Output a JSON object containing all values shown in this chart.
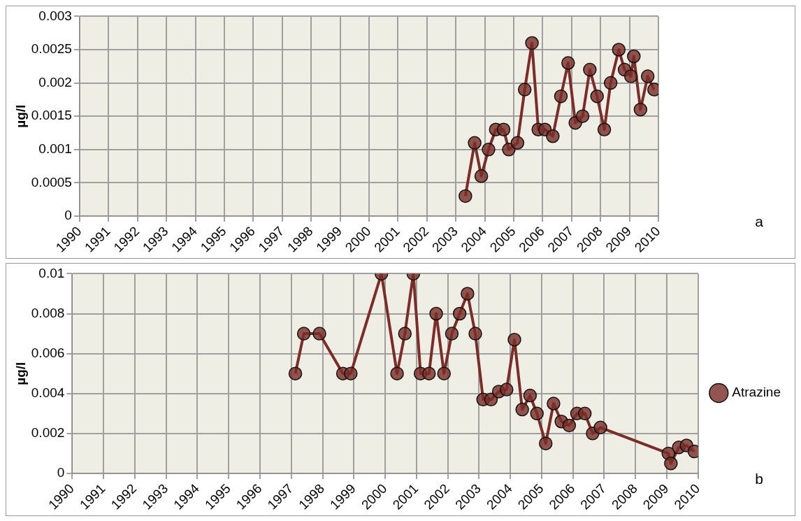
{
  "chart_data": [
    {
      "type": "line",
      "ylabel": "µg/l",
      "annotations": [
        "a"
      ],
      "xlim": [
        1990,
        2010
      ],
      "xticks": [
        1990,
        1991,
        1992,
        1993,
        1994,
        1995,
        1996,
        1997,
        1998,
        1999,
        2000,
        2001,
        2002,
        2003,
        2004,
        2005,
        2006,
        2007,
        2008,
        2009,
        2010
      ],
      "ylim": [
        0,
        0.003
      ],
      "yticks": [
        0,
        0.0005,
        0.001,
        0.0015,
        0.002,
        0.0025,
        0.003
      ],
      "grid": true,
      "legend": false,
      "marker": "circle",
      "line_style": "solid",
      "x": [
        2003.33,
        2003.65,
        2003.88,
        2004.13,
        2004.38,
        2004.65,
        2004.83,
        2005.13,
        2005.38,
        2005.63,
        2005.85,
        2006.08,
        2006.35,
        2006.63,
        2006.88,
        2007.13,
        2007.38,
        2007.63,
        2007.88,
        2008.13,
        2008.35,
        2008.63,
        2008.83,
        2009.05,
        2009.15,
        2009.38,
        2009.63,
        2009.85
      ],
      "series": [
        {
          "color": "#7a2e2a",
          "values": [
            0.0003,
            0.0011,
            0.0006,
            0.001,
            0.0013,
            0.0013,
            0.001,
            0.0011,
            0.0019,
            0.0026,
            0.0013,
            0.0013,
            0.0012,
            0.0018,
            0.0023,
            0.0014,
            0.0015,
            0.0022,
            0.0018,
            0.0013,
            0.002,
            0.0025,
            0.0022,
            0.0021,
            0.0024,
            0.0016,
            0.0021,
            0.0019
          ]
        }
      ]
    },
    {
      "type": "line",
      "ylabel": "µg/l",
      "annotations": [
        "b"
      ],
      "xlim": [
        1990,
        2010
      ],
      "xticks": [
        1990,
        1991,
        1992,
        1993,
        1994,
        1995,
        1996,
        1997,
        1998,
        1999,
        2000,
        2001,
        2002,
        2003,
        2004,
        2005,
        2006,
        2007,
        2008,
        2009,
        2010
      ],
      "ylim": [
        0,
        0.01
      ],
      "yticks": [
        0,
        0.002,
        0.004,
        0.006,
        0.008,
        0.01
      ],
      "grid": true,
      "legend": "right",
      "marker": "circle",
      "line_style": "solid",
      "x": [
        1997.13,
        1997.4,
        1997.9,
        1998.65,
        1998.9,
        1999.88,
        2000.38,
        2000.63,
        2000.9,
        2001.13,
        2001.4,
        2001.63,
        2001.88,
        2002.13,
        2002.38,
        2002.63,
        2002.88,
        2003.13,
        2003.38,
        2003.63,
        2003.88,
        2004.13,
        2004.38,
        2004.63,
        2004.85,
        2005.13,
        2005.38,
        2005.63,
        2005.88,
        2006.13,
        2006.38,
        2006.63,
        2006.88,
        2009.05,
        2009.13,
        2009.38,
        2009.63,
        2009.88
      ],
      "series": [
        {
          "name": "Atrazine",
          "color": "#7a2e2a",
          "values": [
            0.005,
            0.007,
            0.007,
            0.005,
            0.005,
            0.01,
            0.005,
            0.007,
            0.01,
            0.005,
            0.005,
            0.008,
            0.005,
            0.007,
            0.008,
            0.009,
            0.007,
            0.0037,
            0.0037,
            0.0041,
            0.0042,
            0.0067,
            0.0032,
            0.0039,
            0.003,
            0.0015,
            0.0035,
            0.0026,
            0.0024,
            0.003,
            0.003,
            0.002,
            0.0023,
            0.001,
            0.0005,
            0.0013,
            0.0014,
            0.0011
          ]
        }
      ]
    }
  ]
}
